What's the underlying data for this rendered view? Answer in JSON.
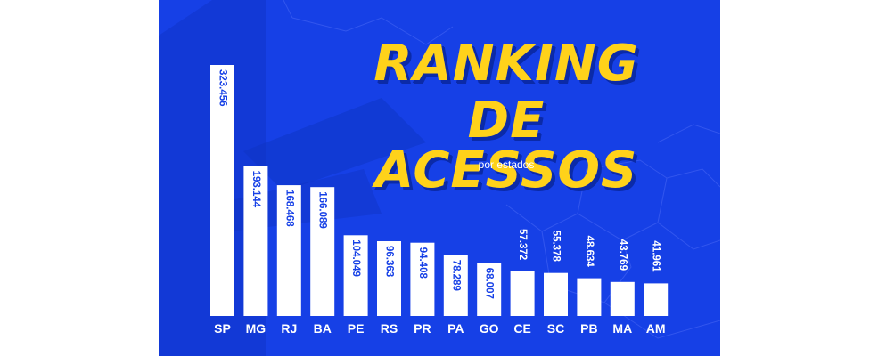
{
  "title_line1": "RANKING",
  "title_line2": "DE ACESSOS",
  "subtitle": "por estados",
  "colors": {
    "background": "#1640e6",
    "title": "#ffd21a",
    "bars": "#ffffff",
    "value_inside": "#1640e6",
    "value_outside": "#ffffff"
  },
  "chart_data": {
    "type": "bar",
    "categories": [
      "SP",
      "MG",
      "RJ",
      "BA",
      "PE",
      "RS",
      "PR",
      "PA",
      "GO",
      "CE",
      "SC",
      "PB",
      "MA",
      "AM"
    ],
    "values": [
      323456,
      193144,
      168468,
      166089,
      104049,
      96363,
      94408,
      78289,
      68007,
      57372,
      55378,
      48634,
      43769,
      41961
    ],
    "value_labels": [
      "323.456",
      "193.144",
      "168.468",
      "166.089",
      "104.049",
      "96.363",
      "94.408",
      "78.289",
      "68.007",
      "57.372",
      "55.378",
      "48.634",
      "43.769",
      "41.961"
    ],
    "title": "RANKING DE ACESSOS",
    "subtitle": "por estados",
    "xlabel": "",
    "ylabel": "",
    "ylim": [
      0,
      323456
    ],
    "grid": false,
    "legend": "none"
  }
}
